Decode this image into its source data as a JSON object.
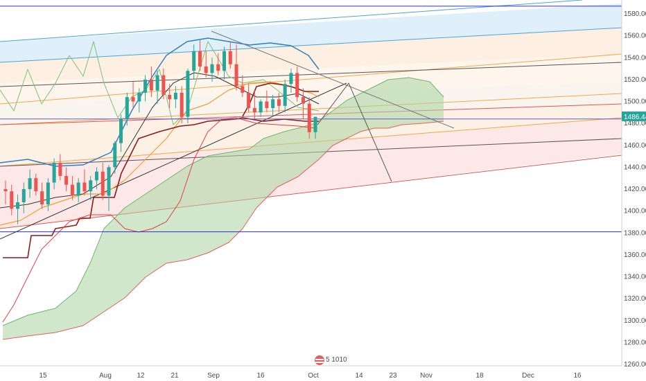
{
  "chart_data": {
    "type": "candlestick",
    "x_tick_labels": [
      "15",
      "Aug",
      "12",
      "21",
      "Sep",
      "16",
      "Oct",
      "14",
      "23",
      "Nov",
      "18",
      "Dec",
      "16"
    ],
    "y_tick_labels": [
      "1260.00",
      "1280.00",
      "1300.00",
      "1320.00",
      "1340.00",
      "1360.00",
      "1380.00",
      "1400.00",
      "1420.00",
      "1440.00",
      "1460.00",
      "1480.00",
      "1500.00",
      "1520.00",
      "1540.00",
      "1560.00",
      "1580.00"
    ],
    "y_range": [
      1260,
      1580
    ],
    "last_price_label": "1486.44",
    "horizontal_levels": [
      1587,
      1381,
      1484
    ],
    "watermark_text": "5 1010",
    "candles": [
      {
        "o": 1420,
        "h": 1428,
        "l": 1406,
        "c": 1418
      },
      {
        "o": 1418,
        "h": 1424,
        "l": 1396,
        "c": 1402
      },
      {
        "o": 1402,
        "h": 1415,
        "l": 1388,
        "c": 1408
      },
      {
        "o": 1408,
        "h": 1426,
        "l": 1398,
        "c": 1420
      },
      {
        "o": 1420,
        "h": 1438,
        "l": 1412,
        "c": 1430
      },
      {
        "o": 1430,
        "h": 1434,
        "l": 1414,
        "c": 1418
      },
      {
        "o": 1418,
        "h": 1426,
        "l": 1402,
        "c": 1406
      },
      {
        "o": 1406,
        "h": 1430,
        "l": 1400,
        "c": 1426
      },
      {
        "o": 1426,
        "h": 1448,
        "l": 1420,
        "c": 1444
      },
      {
        "o": 1444,
        "h": 1452,
        "l": 1428,
        "c": 1432
      },
      {
        "o": 1432,
        "h": 1440,
        "l": 1418,
        "c": 1424
      },
      {
        "o": 1424,
        "h": 1432,
        "l": 1410,
        "c": 1414
      },
      {
        "o": 1414,
        "h": 1430,
        "l": 1408,
        "c": 1426
      },
      {
        "o": 1426,
        "h": 1438,
        "l": 1414,
        "c": 1418
      },
      {
        "o": 1418,
        "h": 1432,
        "l": 1410,
        "c": 1428
      },
      {
        "o": 1428,
        "h": 1440,
        "l": 1420,
        "c": 1436
      },
      {
        "o": 1436,
        "h": 1444,
        "l": 1410,
        "c": 1414
      },
      {
        "o": 1414,
        "h": 1442,
        "l": 1400,
        "c": 1440
      },
      {
        "o": 1440,
        "h": 1464,
        "l": 1434,
        "c": 1462
      },
      {
        "o": 1462,
        "h": 1488,
        "l": 1454,
        "c": 1484
      },
      {
        "o": 1484,
        "h": 1508,
        "l": 1478,
        "c": 1504
      },
      {
        "o": 1504,
        "h": 1518,
        "l": 1494,
        "c": 1500
      },
      {
        "o": 1500,
        "h": 1512,
        "l": 1490,
        "c": 1508
      },
      {
        "o": 1508,
        "h": 1524,
        "l": 1500,
        "c": 1520
      },
      {
        "o": 1520,
        "h": 1532,
        "l": 1504,
        "c": 1510
      },
      {
        "o": 1510,
        "h": 1528,
        "l": 1498,
        "c": 1524
      },
      {
        "o": 1524,
        "h": 1530,
        "l": 1502,
        "c": 1506
      },
      {
        "o": 1506,
        "h": 1516,
        "l": 1494,
        "c": 1502
      },
      {
        "o": 1502,
        "h": 1514,
        "l": 1494,
        "c": 1508
      },
      {
        "o": 1508,
        "h": 1514,
        "l": 1480,
        "c": 1486
      },
      {
        "o": 1486,
        "h": 1530,
        "l": 1480,
        "c": 1528
      },
      {
        "o": 1528,
        "h": 1552,
        "l": 1520,
        "c": 1546
      },
      {
        "o": 1546,
        "h": 1556,
        "l": 1528,
        "c": 1532
      },
      {
        "o": 1532,
        "h": 1546,
        "l": 1522,
        "c": 1526
      },
      {
        "o": 1526,
        "h": 1540,
        "l": 1518,
        "c": 1534
      },
      {
        "o": 1534,
        "h": 1544,
        "l": 1524,
        "c": 1528
      },
      {
        "o": 1528,
        "h": 1550,
        "l": 1520,
        "c": 1546
      },
      {
        "o": 1546,
        "h": 1554,
        "l": 1530,
        "c": 1534
      },
      {
        "o": 1534,
        "h": 1552,
        "l": 1510,
        "c": 1514
      },
      {
        "o": 1514,
        "h": 1524,
        "l": 1504,
        "c": 1508
      },
      {
        "o": 1508,
        "h": 1516,
        "l": 1490,
        "c": 1494
      },
      {
        "o": 1494,
        "h": 1510,
        "l": 1484,
        "c": 1490
      },
      {
        "o": 1490,
        "h": 1502,
        "l": 1486,
        "c": 1500
      },
      {
        "o": 1500,
        "h": 1510,
        "l": 1490,
        "c": 1494
      },
      {
        "o": 1494,
        "h": 1506,
        "l": 1486,
        "c": 1502
      },
      {
        "o": 1502,
        "h": 1508,
        "l": 1490,
        "c": 1496
      },
      {
        "o": 1496,
        "h": 1520,
        "l": 1490,
        "c": 1516
      },
      {
        "o": 1516,
        "h": 1530,
        "l": 1508,
        "c": 1526
      },
      {
        "o": 1526,
        "h": 1532,
        "l": 1500,
        "c": 1504
      },
      {
        "o": 1504,
        "h": 1512,
        "l": 1484,
        "c": 1498
      },
      {
        "o": 1498,
        "h": 1504,
        "l": 1466,
        "c": 1472
      },
      {
        "o": 1472,
        "h": 1486,
        "l": 1466,
        "c": 1486
      }
    ]
  }
}
